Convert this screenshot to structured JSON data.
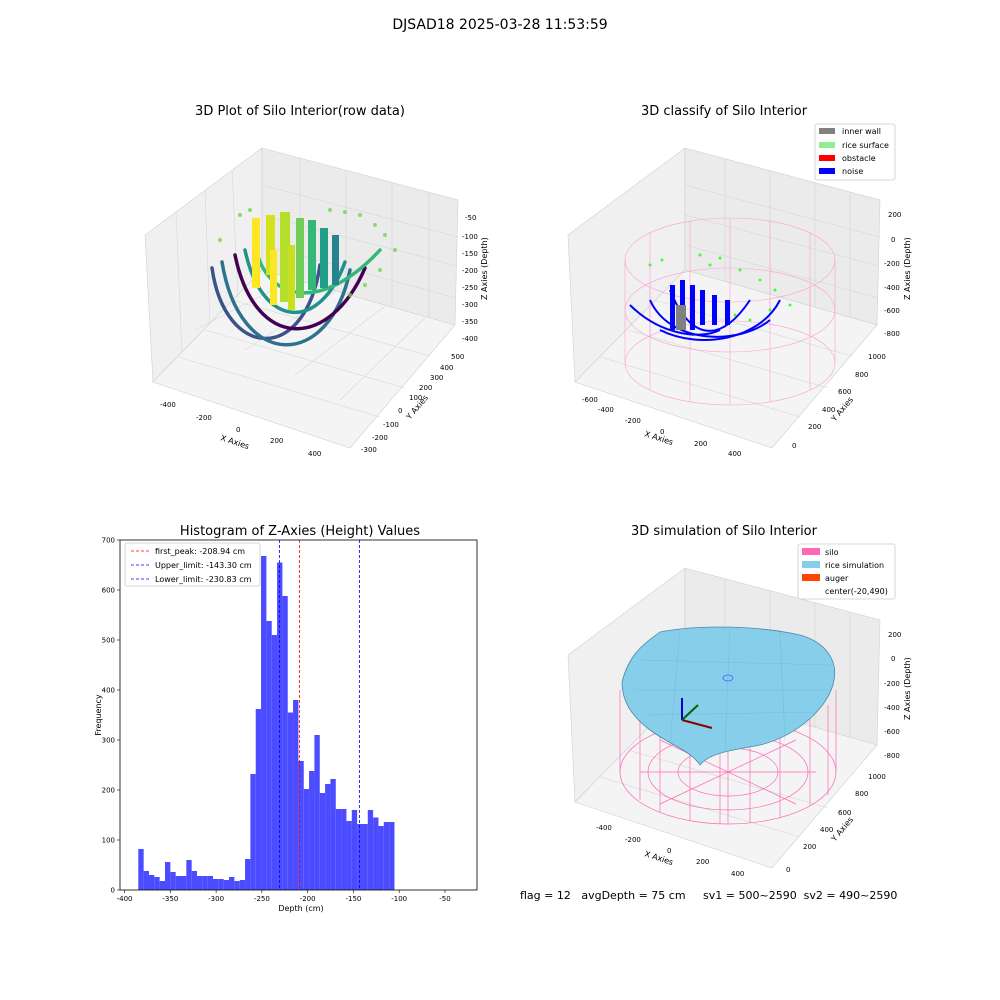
{
  "figure": {
    "suptitle": "DJSAD18 2025-03-28 11:53:59",
    "footer": "flag = 12   avgDepth = 75 cm     sv1 = 500~2590  sv2 = 490~2590"
  },
  "colors": {
    "histogram_bar": "#4b4bff",
    "first_peak_line": "#ff0000",
    "limit_lines": "#0000ff",
    "silo_pink": "#ff69b4",
    "rice_sim": "#87ceeb",
    "auger": "#ff4500",
    "inner_wall": "#808080",
    "rice_surface": "#90ee90",
    "obstacle": "#ff0000",
    "noise": "#0000ff"
  },
  "plot1": {
    "title": "3D Plot of Silo Interior(row data)",
    "xlabel": "X Axies",
    "ylabel": "Y Axies",
    "zlabel": "Z Axies (Depth)",
    "xticks": [
      "-400",
      "-200",
      "0",
      "200",
      "400"
    ],
    "yticks": [
      "-300",
      "-200",
      "-100",
      "0",
      "100",
      "200",
      "300",
      "400",
      "500"
    ],
    "zticks": [
      "-50",
      "-100",
      "-150",
      "-200",
      "-250",
      "-300",
      "-350",
      "-400"
    ]
  },
  "plot2": {
    "title": "3D classify of Silo Interior",
    "xlabel": "X Axies",
    "ylabel": "Y Axies",
    "zlabel": "Z Axies (Depth)",
    "xticks": [
      "-600",
      "-400",
      "-200",
      "0",
      "200",
      "400"
    ],
    "yticks": [
      "0",
      "200",
      "400",
      "600",
      "800",
      "1000"
    ],
    "zticks": [
      "200",
      "0",
      "-200",
      "-400",
      "-600",
      "-800"
    ],
    "legend": [
      "inner wall",
      "rice surface",
      "obstacle",
      "noise"
    ]
  },
  "plot3": {
    "title": "Histogram of Z-Axies (Height) Values",
    "xlabel": "Depth (cm)",
    "ylabel": "Frequency",
    "legend": [
      "first_peak: -208.94 cm",
      "Upper_limit: -143.30 cm",
      "Lower_limit: -230.83 cm"
    ]
  },
  "plot4": {
    "title": "3D simulation of Silo Interior",
    "xlabel": "X Axies",
    "ylabel": "Y Axies",
    "zlabel": "Z Axies (Depth)",
    "xticks": [
      "-400",
      "-200",
      "0",
      "200",
      "400"
    ],
    "yticks": [
      "0",
      "200",
      "400",
      "600",
      "800",
      "1000"
    ],
    "zticks": [
      "200",
      "0",
      "-200",
      "-400",
      "-600",
      "-800"
    ],
    "legend": [
      "silo",
      "rice simulation",
      "auger",
      "center(-20,490)"
    ]
  },
  "chart_data": [
    {
      "type": "scatter",
      "title": "3D Plot of Silo Interior(row data)",
      "xlabel": "X Axies",
      "ylabel": "Y Axies",
      "zlabel": "Z Axies (Depth)",
      "xlim": [
        -450,
        450
      ],
      "ylim": [
        -300,
        500
      ],
      "zlim": [
        -400,
        -50
      ]
    },
    {
      "type": "scatter",
      "title": "3D classify of Silo Interior",
      "xlabel": "X Axies",
      "ylabel": "Y Axies",
      "zlabel": "Z Axies (Depth)",
      "xlim": [
        -600,
        450
      ],
      "ylim": [
        0,
        1000
      ],
      "zlim": [
        -800,
        200
      ],
      "legend": [
        "inner wall",
        "rice surface",
        "obstacle",
        "noise"
      ]
    },
    {
      "type": "bar",
      "title": "Histogram of Z-Axies (Height) Values",
      "xlabel": "Depth (cm)",
      "ylabel": "Frequency",
      "xlim": [
        -405,
        -15
      ],
      "ylim": [
        0,
        700
      ],
      "xticks": [
        -400,
        -350,
        -300,
        -250,
        -200,
        -150,
        -100,
        -50
      ],
      "yticks": [
        0,
        100,
        200,
        300,
        400,
        500,
        600,
        700
      ],
      "bin_edges_start": -385,
      "bin_width": 5.83,
      "values": [
        82,
        38,
        30,
        26,
        18,
        56,
        36,
        28,
        28,
        60,
        38,
        28,
        28,
        28,
        22,
        22,
        20,
        26,
        18,
        20,
        62,
        232,
        362,
        668,
        538,
        510,
        655,
        588,
        355,
        380,
        258,
        202,
        238,
        310,
        194,
        212,
        222,
        162,
        162,
        138,
        160,
        132,
        132,
        160,
        145,
        128,
        136,
        136
      ],
      "vlines": [
        {
          "label": "first_peak: -208.94 cm",
          "x": -208.94
        },
        {
          "label": "Upper_limit: -143.30 cm",
          "x": -143.3
        },
        {
          "label": "Lower_limit: -230.83 cm",
          "x": -230.83
        }
      ]
    },
    {
      "type": "area",
      "title": "3D simulation of Silo Interior",
      "xlabel": "X Axies",
      "ylabel": "Y Axies",
      "zlabel": "Z Axies (Depth)",
      "xlim": [
        -500,
        500
      ],
      "ylim": [
        0,
        1000
      ],
      "zlim": [
        -800,
        200
      ],
      "legend": [
        "silo",
        "rice simulation",
        "auger",
        "center(-20,490)"
      ]
    }
  ]
}
